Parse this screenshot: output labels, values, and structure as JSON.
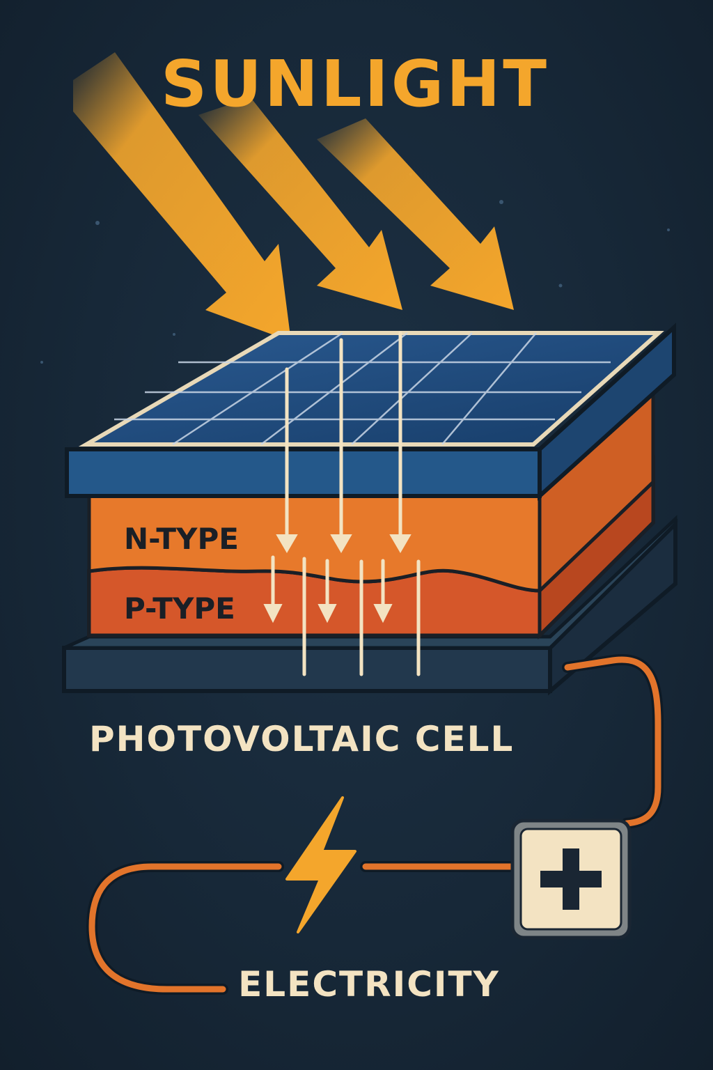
{
  "labels": {
    "sunlight": "SUNLIGHT",
    "n_type": "N-TYPE",
    "p_type": "P-TYPE",
    "photovoltaic_cell": "PHOTOVOLTAIC CELL",
    "electricity": "ELECTRICITY"
  },
  "colors": {
    "background": "#172838",
    "sun_ray": "#f4a62c",
    "panel_blue": "#1f4a7c",
    "grid_line": "#c9d6e6",
    "n_type_orange": "#e7792b",
    "p_type_orange": "#d5572a",
    "base_dark": "#22384d",
    "wire": "#e2742b",
    "label_cream": "#f3e3c2",
    "battery_face": "#f3e3c2"
  },
  "icons": {
    "bolt": "lightning-bolt-icon",
    "battery": "battery-plus-icon"
  }
}
